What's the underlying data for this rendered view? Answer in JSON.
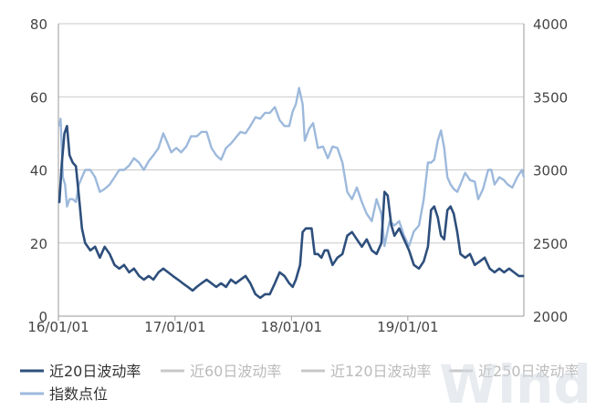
{
  "chart_data": {
    "type": "line",
    "title": "",
    "x_ticks": [
      "16/01/01",
      "17/01/01",
      "18/01/01",
      "19/01/01"
    ],
    "y_left_ticks": [
      "0",
      "20",
      "40",
      "60",
      "80"
    ],
    "y_right_ticks": [
      "2000",
      "2500",
      "3000",
      "3500",
      "4000"
    ],
    "ylim_left": [
      0,
      80
    ],
    "ylim_right": [
      2000,
      4000
    ],
    "x_range": [
      "2016-01-01",
      "2019-12-31"
    ],
    "grid": "horizontal",
    "legend_position": "bottom",
    "series": [
      {
        "name": "近20日波动率",
        "axis": "left",
        "color": "#2e4f7c",
        "points": [
          [
            "2016-01-04",
            31
          ],
          [
            "2016-01-12",
            42
          ],
          [
            "2016-01-20",
            50
          ],
          [
            "2016-01-28",
            52
          ],
          [
            "2016-02-05",
            44
          ],
          [
            "2016-02-15",
            42
          ],
          [
            "2016-02-25",
            41
          ],
          [
            "2016-03-05",
            33
          ],
          [
            "2016-03-15",
            24
          ],
          [
            "2016-03-25",
            20
          ],
          [
            "2016-04-10",
            18
          ],
          [
            "2016-04-25",
            19
          ],
          [
            "2016-05-10",
            16
          ],
          [
            "2016-05-25",
            19
          ],
          [
            "2016-06-10",
            17
          ],
          [
            "2016-06-25",
            14
          ],
          [
            "2016-07-10",
            13
          ],
          [
            "2016-07-25",
            14
          ],
          [
            "2016-08-10",
            12
          ],
          [
            "2016-08-25",
            13
          ],
          [
            "2016-09-10",
            11
          ],
          [
            "2016-09-25",
            10
          ],
          [
            "2016-10-10",
            11
          ],
          [
            "2016-10-25",
            10
          ],
          [
            "2016-11-10",
            12
          ],
          [
            "2016-11-25",
            13
          ],
          [
            "2016-12-10",
            12
          ],
          [
            "2016-12-25",
            11
          ],
          [
            "2017-01-10",
            10
          ],
          [
            "2017-01-25",
            9
          ],
          [
            "2017-02-10",
            8
          ],
          [
            "2017-02-25",
            7
          ],
          [
            "2017-03-10",
            8
          ],
          [
            "2017-03-25",
            9
          ],
          [
            "2017-04-10",
            10
          ],
          [
            "2017-04-25",
            9
          ],
          [
            "2017-05-10",
            8
          ],
          [
            "2017-05-25",
            9
          ],
          [
            "2017-06-10",
            8
          ],
          [
            "2017-06-25",
            10
          ],
          [
            "2017-07-10",
            9
          ],
          [
            "2017-07-25",
            10
          ],
          [
            "2017-08-10",
            11
          ],
          [
            "2017-08-25",
            9
          ],
          [
            "2017-09-10",
            6
          ],
          [
            "2017-09-25",
            5
          ],
          [
            "2017-10-10",
            6
          ],
          [
            "2017-10-25",
            6
          ],
          [
            "2017-11-10",
            9
          ],
          [
            "2017-11-25",
            12
          ],
          [
            "2017-12-10",
            11
          ],
          [
            "2017-12-25",
            9
          ],
          [
            "2018-01-05",
            8
          ],
          [
            "2018-01-15",
            10
          ],
          [
            "2018-01-28",
            14
          ],
          [
            "2018-02-05",
            23
          ],
          [
            "2018-02-15",
            24
          ],
          [
            "2018-02-25",
            24
          ],
          [
            "2018-03-05",
            24
          ],
          [
            "2018-03-15",
            17
          ],
          [
            "2018-03-25",
            17
          ],
          [
            "2018-04-05",
            16
          ],
          [
            "2018-04-15",
            18
          ],
          [
            "2018-04-25",
            18
          ],
          [
            "2018-05-10",
            14
          ],
          [
            "2018-05-25",
            16
          ],
          [
            "2018-06-10",
            17
          ],
          [
            "2018-06-25",
            22
          ],
          [
            "2018-07-10",
            23
          ],
          [
            "2018-07-25",
            21
          ],
          [
            "2018-08-10",
            19
          ],
          [
            "2018-08-25",
            21
          ],
          [
            "2018-09-10",
            18
          ],
          [
            "2018-09-25",
            17
          ],
          [
            "2018-10-10",
            20
          ],
          [
            "2018-10-20",
            34
          ],
          [
            "2018-10-30",
            33
          ],
          [
            "2018-11-10",
            25
          ],
          [
            "2018-11-20",
            22
          ],
          [
            "2018-12-05",
            24
          ],
          [
            "2018-12-20",
            21
          ],
          [
            "2019-01-05",
            18
          ],
          [
            "2019-01-20",
            14
          ],
          [
            "2019-02-05",
            13
          ],
          [
            "2019-02-20",
            15
          ],
          [
            "2019-03-05",
            19
          ],
          [
            "2019-03-15",
            29
          ],
          [
            "2019-03-25",
            30
          ],
          [
            "2019-04-05",
            27
          ],
          [
            "2019-04-15",
            22
          ],
          [
            "2019-04-25",
            21
          ],
          [
            "2019-05-05",
            29
          ],
          [
            "2019-05-15",
            30
          ],
          [
            "2019-05-25",
            28
          ],
          [
            "2019-06-05",
            23
          ],
          [
            "2019-06-15",
            17
          ],
          [
            "2019-06-30",
            16
          ],
          [
            "2019-07-15",
            17
          ],
          [
            "2019-07-30",
            14
          ],
          [
            "2019-08-15",
            15
          ],
          [
            "2019-08-30",
            16
          ],
          [
            "2019-09-15",
            13
          ],
          [
            "2019-09-30",
            12
          ],
          [
            "2019-10-15",
            13
          ],
          [
            "2019-10-30",
            12
          ],
          [
            "2019-11-15",
            13
          ],
          [
            "2019-11-30",
            12
          ],
          [
            "2019-12-15",
            11
          ],
          [
            "2019-12-31",
            11
          ]
        ]
      },
      {
        "name": "近60日波动率",
        "axis": "left",
        "color": "#c8c8c8",
        "points": []
      },
      {
        "name": "近120日波动率",
        "axis": "left",
        "color": "#c8c8c8",
        "points": []
      },
      {
        "name": "近250日波动率",
        "axis": "left",
        "color": "#c8c8c8",
        "points": []
      },
      {
        "name": "指数点位",
        "axis": "right",
        "color": "#9db9dc",
        "points": [
          [
            "2016-01-04",
            3300
          ],
          [
            "2016-01-08",
            3350
          ],
          [
            "2016-01-15",
            2950
          ],
          [
            "2016-01-22",
            2900
          ],
          [
            "2016-01-28",
            2750
          ],
          [
            "2016-02-05",
            2800
          ],
          [
            "2016-02-15",
            2800
          ],
          [
            "2016-02-25",
            2780
          ],
          [
            "2016-03-05",
            2900
          ],
          [
            "2016-03-15",
            2950
          ],
          [
            "2016-03-25",
            3000
          ],
          [
            "2016-04-10",
            3000
          ],
          [
            "2016-04-25",
            2950
          ],
          [
            "2016-05-10",
            2850
          ],
          [
            "2016-05-25",
            2870
          ],
          [
            "2016-06-10",
            2900
          ],
          [
            "2016-06-25",
            2950
          ],
          [
            "2016-07-10",
            3000
          ],
          [
            "2016-07-25",
            3000
          ],
          [
            "2016-08-10",
            3030
          ],
          [
            "2016-08-25",
            3080
          ],
          [
            "2016-09-10",
            3050
          ],
          [
            "2016-09-25",
            3000
          ],
          [
            "2016-10-10",
            3060
          ],
          [
            "2016-10-25",
            3100
          ],
          [
            "2016-11-10",
            3150
          ],
          [
            "2016-11-25",
            3250
          ],
          [
            "2016-12-05",
            3200
          ],
          [
            "2016-12-20",
            3120
          ],
          [
            "2017-01-05",
            3150
          ],
          [
            "2017-01-20",
            3120
          ],
          [
            "2017-02-05",
            3160
          ],
          [
            "2017-02-20",
            3230
          ],
          [
            "2017-03-10",
            3230
          ],
          [
            "2017-03-25",
            3260
          ],
          [
            "2017-04-10",
            3260
          ],
          [
            "2017-04-25",
            3150
          ],
          [
            "2017-05-10",
            3100
          ],
          [
            "2017-05-25",
            3070
          ],
          [
            "2017-06-10",
            3150
          ],
          [
            "2017-06-25",
            3180
          ],
          [
            "2017-07-10",
            3220
          ],
          [
            "2017-07-25",
            3260
          ],
          [
            "2017-08-10",
            3250
          ],
          [
            "2017-08-25",
            3300
          ],
          [
            "2017-09-10",
            3360
          ],
          [
            "2017-09-25",
            3350
          ],
          [
            "2017-10-10",
            3390
          ],
          [
            "2017-10-25",
            3390
          ],
          [
            "2017-11-10",
            3430
          ],
          [
            "2017-11-25",
            3340
          ],
          [
            "2017-12-10",
            3300
          ],
          [
            "2017-12-25",
            3300
          ],
          [
            "2018-01-05",
            3400
          ],
          [
            "2018-01-15",
            3450
          ],
          [
            "2018-01-25",
            3560
          ],
          [
            "2018-02-05",
            3450
          ],
          [
            "2018-02-12",
            3200
          ],
          [
            "2018-02-25",
            3280
          ],
          [
            "2018-03-10",
            3320
          ],
          [
            "2018-03-25",
            3150
          ],
          [
            "2018-04-10",
            3160
          ],
          [
            "2018-04-25",
            3080
          ],
          [
            "2018-05-10",
            3160
          ],
          [
            "2018-05-25",
            3150
          ],
          [
            "2018-06-10",
            3050
          ],
          [
            "2018-06-25",
            2850
          ],
          [
            "2018-07-10",
            2800
          ],
          [
            "2018-07-25",
            2880
          ],
          [
            "2018-08-10",
            2780
          ],
          [
            "2018-08-25",
            2700
          ],
          [
            "2018-09-10",
            2650
          ],
          [
            "2018-09-25",
            2800
          ],
          [
            "2018-10-10",
            2700
          ],
          [
            "2018-10-20",
            2480
          ],
          [
            "2018-11-05",
            2650
          ],
          [
            "2018-11-20",
            2620
          ],
          [
            "2018-12-05",
            2650
          ],
          [
            "2018-12-20",
            2550
          ],
          [
            "2019-01-05",
            2480
          ],
          [
            "2019-01-20",
            2580
          ],
          [
            "2019-02-05",
            2620
          ],
          [
            "2019-02-20",
            2800
          ],
          [
            "2019-03-05",
            3050
          ],
          [
            "2019-03-15",
            3050
          ],
          [
            "2019-03-25",
            3070
          ],
          [
            "2019-04-05",
            3200
          ],
          [
            "2019-04-15",
            3270
          ],
          [
            "2019-04-25",
            3150
          ],
          [
            "2019-05-05",
            2950
          ],
          [
            "2019-05-15",
            2900
          ],
          [
            "2019-05-25",
            2870
          ],
          [
            "2019-06-05",
            2850
          ],
          [
            "2019-06-15",
            2900
          ],
          [
            "2019-06-30",
            2980
          ],
          [
            "2019-07-15",
            2930
          ],
          [
            "2019-07-30",
            2920
          ],
          [
            "2019-08-10",
            2800
          ],
          [
            "2019-08-25",
            2870
          ],
          [
            "2019-09-10",
            3000
          ],
          [
            "2019-09-20",
            3000
          ],
          [
            "2019-09-30",
            2900
          ],
          [
            "2019-10-15",
            2950
          ],
          [
            "2019-10-30",
            2930
          ],
          [
            "2019-11-10",
            2900
          ],
          [
            "2019-11-25",
            2880
          ],
          [
            "2019-12-10",
            2950
          ],
          [
            "2019-12-25",
            3000
          ],
          [
            "2019-12-31",
            2950
          ]
        ]
      }
    ]
  },
  "watermark": "Wind"
}
